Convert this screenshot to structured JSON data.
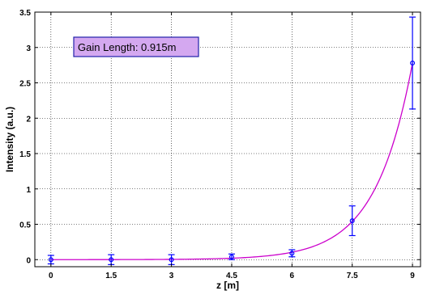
{
  "chart_data": {
    "type": "scatter",
    "title": "",
    "xlabel": "z [m]",
    "ylabel": "Intensity (a.u.)",
    "xlim": [
      -0.4,
      9.2
    ],
    "ylim": [
      -0.1,
      3.5
    ],
    "xticks": [
      0,
      1.5,
      3,
      4.5,
      6,
      7.5,
      9
    ],
    "xtick_labels": [
      "0",
      "1.5",
      "3",
      "4.5",
      "6",
      "7.5",
      "9"
    ],
    "yticks": [
      0,
      0.5,
      1,
      1.5,
      2,
      2.5,
      3,
      3.5
    ],
    "ytick_labels": [
      "0",
      "0.5",
      "1",
      "1.5",
      "2",
      "2.5",
      "3",
      "3.5"
    ],
    "grid": true,
    "annotation": "Gain Length: 0.915m",
    "series": [
      {
        "kind": "points-with-errorbars",
        "color": "#0000ff",
        "x": [
          0,
          1.5,
          3,
          4.5,
          6,
          7.5,
          9
        ],
        "y": [
          0.0,
          0.0,
          0.0,
          0.04,
          0.09,
          0.55,
          2.78
        ],
        "err_low": [
          0.06,
          0.07,
          0.07,
          0.04,
          0.05,
          0.21,
          0.65
        ],
        "err_high": [
          0.06,
          0.07,
          0.07,
          0.04,
          0.05,
          0.21,
          0.65
        ]
      },
      {
        "kind": "fit-curve",
        "color": "#cc00cc",
        "gain_length": 0.915,
        "amplitude": 2.78,
        "x_ref": 9,
        "x_start": 0,
        "x_end": 9
      }
    ],
    "colors": {
      "points": "#0000ff",
      "fit": "#cc00cc",
      "annotation_fill": "#d4a8f0",
      "annotation_border": "#2222aa"
    }
  }
}
